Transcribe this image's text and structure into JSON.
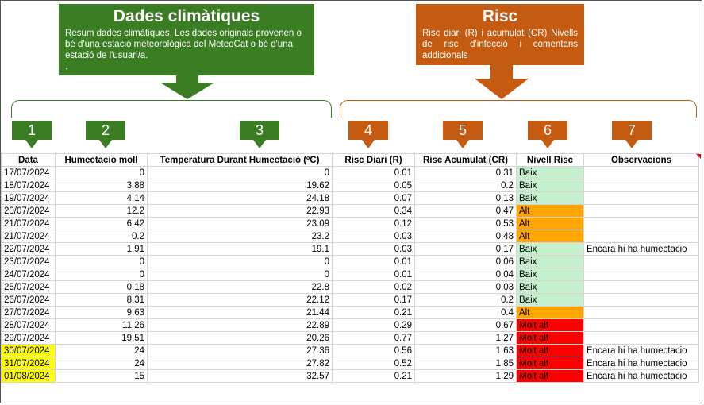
{
  "callouts": {
    "climate": {
      "title": "Dades climàtiques",
      "desc": "Resum dades climàtiques. Les dades originals provenen o bé d'una estació meteorològica del MeteoCat o bé d'una estació de l'usuari/a.",
      "trailing": ".",
      "color": "#3a7d22"
    },
    "risk": {
      "title": "Risc",
      "desc": "Risc diari (R) i acumulat (CR) Nivells de risc d'infecció i comentaris addicionals",
      "color": "#c55a11"
    }
  },
  "markers": [
    "1",
    "2",
    "3",
    "4",
    "5",
    "6",
    "7"
  ],
  "table": {
    "headers": [
      "Data",
      "Humectacio moll",
      "Temperatura Durant Humectació (ºC)",
      "Risc Diari (R)",
      "Risc Acumulat (CR)",
      "Nivell Risc",
      "Observacions"
    ],
    "rows": [
      {
        "date": "17/07/2024",
        "hum": "0",
        "temp": "0",
        "r": "0.01",
        "cr": "0.31",
        "level": "Baix",
        "obs": ""
      },
      {
        "date": "18/07/2024",
        "hum": "3.88",
        "temp": "19.62",
        "r": "0.05",
        "cr": "0.2",
        "level": "Baix",
        "obs": ""
      },
      {
        "date": "19/07/2024",
        "hum": "4.14",
        "temp": "24.18",
        "r": "0.07",
        "cr": "0.13",
        "level": "Baix",
        "obs": ""
      },
      {
        "date": "20/07/2024",
        "hum": "12.2",
        "temp": "22.93",
        "r": "0.34",
        "cr": "0.47",
        "level": "Alt",
        "obs": ""
      },
      {
        "date": "21/07/2024",
        "hum": "6.42",
        "temp": "23.09",
        "r": "0.12",
        "cr": "0.53",
        "level": "Alt",
        "obs": ""
      },
      {
        "date": "21/07/2024",
        "hum": "0.2",
        "temp": "23.2",
        "r": "0.03",
        "cr": "0.48",
        "level": "Alt",
        "obs": ""
      },
      {
        "date": "22/07/2024",
        "hum": "1.91",
        "temp": "19.1",
        "r": "0.03",
        "cr": "0.17",
        "level": "Baix",
        "obs": "Encara hi ha humectacio"
      },
      {
        "date": "23/07/2024",
        "hum": "0",
        "temp": "0",
        "r": "0.01",
        "cr": "0.06",
        "level": "Baix",
        "obs": ""
      },
      {
        "date": "24/07/2024",
        "hum": "0",
        "temp": "0",
        "r": "0.01",
        "cr": "0.04",
        "level": "Baix",
        "obs": ""
      },
      {
        "date": "25/07/2024",
        "hum": "0.18",
        "temp": "22.8",
        "r": "0.02",
        "cr": "0.03",
        "level": "Baix",
        "obs": ""
      },
      {
        "date": "26/07/2024",
        "hum": "8.31",
        "temp": "22.12",
        "r": "0.17",
        "cr": "0.2",
        "level": "Baix",
        "obs": ""
      },
      {
        "date": "27/07/2024",
        "hum": "9.63",
        "temp": "21.44",
        "r": "0.21",
        "cr": "0.4",
        "level": "Alt",
        "obs": ""
      },
      {
        "date": "28/07/2024",
        "hum": "11.26",
        "temp": "22.89",
        "r": "0.29",
        "cr": "0.67",
        "level": "Molt alt",
        "obs": ""
      },
      {
        "date": "29/07/2024",
        "hum": "19.51",
        "temp": "20.26",
        "r": "0.77",
        "cr": "1.27",
        "level": "Molt alt",
        "obs": ""
      },
      {
        "date": "30/07/2024",
        "hum": "24",
        "temp": "27.36",
        "r": "0.56",
        "cr": "1.63",
        "level": "Molt alt",
        "obs": "Encara hi ha humectacio",
        "highlight": true
      },
      {
        "date": "31/07/2024",
        "hum": "24",
        "temp": "27.82",
        "r": "0.52",
        "cr": "1.85",
        "level": "Molt alt",
        "obs": "Encara hi ha humectacio",
        "highlight": true
      },
      {
        "date": "01/08/2024",
        "hum": "15",
        "temp": "32.57",
        "r": "0.21",
        "cr": "1.29",
        "level": "Molt alt",
        "obs": "Encara hi ha humectacio",
        "highlight": true
      }
    ]
  },
  "level_colors": {
    "Baix": "#c6efce",
    "Alt": "#ffa500",
    "Molt alt": "#ff0000"
  },
  "highlight_color": "#ffff00"
}
